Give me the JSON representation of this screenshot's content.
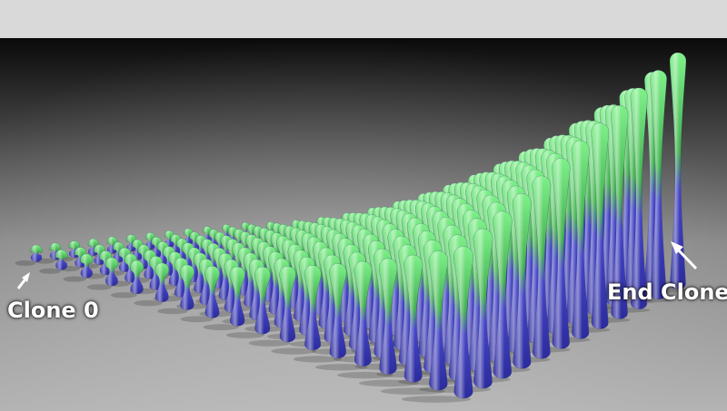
{
  "labels": {
    "start": "Clone 0",
    "end": "End Clone"
  },
  "colors": {
    "top_bar": "#d9d9d9",
    "backdrop": "#000000",
    "floor": "#8e8e8e",
    "clone_top": "#5fd46a",
    "clone_bottom": "#4040c8",
    "label_text": "#ffffff"
  }
}
